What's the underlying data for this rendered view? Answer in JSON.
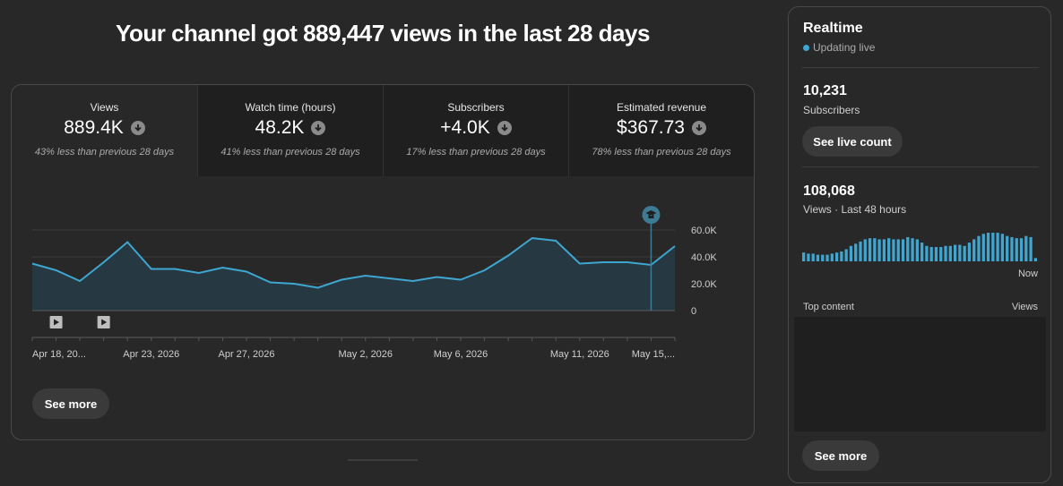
{
  "headline": "Your channel got 889,447 views in the last 28 days",
  "metrics": [
    {
      "label": "Views",
      "value": "889.4K",
      "note": "43% less than previous 28 days",
      "trend_icon": "arrow-down-icon"
    },
    {
      "label": "Watch time (hours)",
      "value": "48.2K",
      "note": "41% less than previous 28 days",
      "trend_icon": "arrow-down-icon"
    },
    {
      "label": "Subscribers",
      "value": "+4.0K",
      "note": "17% less than previous 28 days",
      "trend_icon": "arrow-down-icon"
    },
    {
      "label": "Estimated revenue",
      "value": "$367.73",
      "note": "78% less than previous 28 days",
      "trend_icon": "arrow-down-icon"
    }
  ],
  "chart_data": {
    "type": "area",
    "x": [
      "Apr 18",
      "Apr 19",
      "Apr 20",
      "Apr 21",
      "Apr 22",
      "Apr 23",
      "Apr 24",
      "Apr 25",
      "Apr 26",
      "Apr 27",
      "Apr 28",
      "Apr 29",
      "Apr 30",
      "May 1",
      "May 2",
      "May 3",
      "May 4",
      "May 5",
      "May 6",
      "May 7",
      "May 8",
      "May 9",
      "May 10",
      "May 11",
      "May 12",
      "May 13",
      "May 14",
      "May 15"
    ],
    "series": [
      {
        "values": [
          35000,
          30000,
          22000,
          36000,
          51000,
          31000,
          31000,
          28000,
          32000,
          29000,
          21000,
          20000,
          17000,
          23000,
          26000,
          24000,
          22000,
          25000,
          23000,
          30000,
          41000,
          54000,
          52000,
          35000,
          36000,
          36000,
          34000,
          48000
        ]
      }
    ],
    "ylim": [
      0,
      60000
    ],
    "yticks": [
      "60.0K",
      "40.0K",
      "20.0K",
      "0"
    ],
    "xtick_labels": [
      {
        "label": "Apr 18, 20...",
        "index": 0
      },
      {
        "label": "Apr 23, 2026",
        "index": 5
      },
      {
        "label": "Apr 27, 2026",
        "index": 9
      },
      {
        "label": "May 2, 2026",
        "index": 14
      },
      {
        "label": "May 6, 2026",
        "index": 18
      },
      {
        "label": "May 11, 2026",
        "index": 23
      },
      {
        "label": "May 15,...",
        "index": 27
      }
    ],
    "video_markers": [
      1,
      3
    ],
    "milestone_marker_index": 26,
    "grid": true,
    "line_color": "#3ea6d0",
    "fill_color": "#263841"
  },
  "main_see_more": "See more",
  "realtime": {
    "title": "Realtime",
    "status": "Updating live",
    "subscribers_count": "10,231",
    "subscribers_label": "Subscribers",
    "live_count_button": "See live count",
    "views_count": "108,068",
    "views_label": "Views · Last 48 hours",
    "bars": [
      8,
      7,
      7,
      6,
      6,
      6,
      7,
      8,
      9,
      11,
      14,
      16,
      18,
      20,
      21,
      21,
      20,
      20,
      21,
      20,
      20,
      20,
      22,
      21,
      20,
      17,
      14,
      13,
      13,
      13,
      14,
      14,
      15,
      15,
      14,
      17,
      20,
      23,
      25,
      26,
      26,
      26,
      25,
      23,
      22,
      21,
      21,
      23,
      22,
      3
    ],
    "now_label": "Now",
    "top_content_label": "Top content",
    "views_col_label": "Views",
    "see_more": "See more",
    "accent": "#3ea6d0"
  }
}
